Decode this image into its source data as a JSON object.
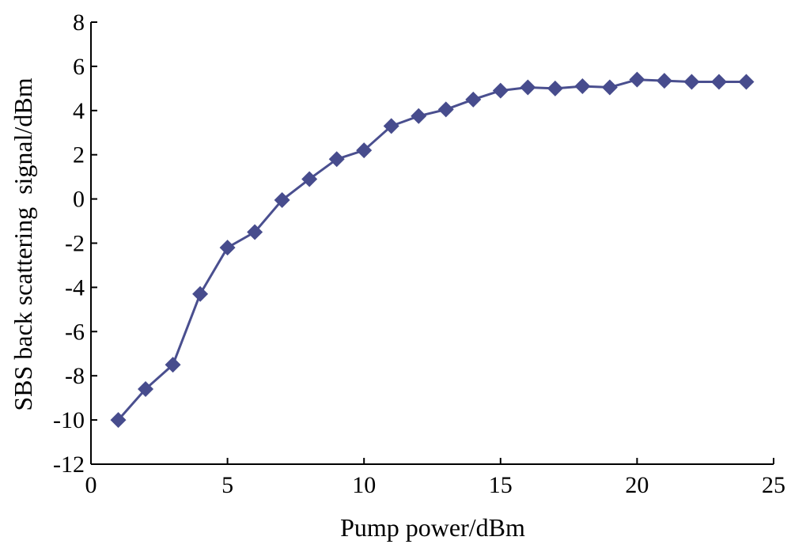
{
  "chart_data": {
    "type": "line",
    "title": "",
    "xlabel": "Pump power/dBm",
    "ylabel": "SBS back scattering  signal/dBm",
    "xlim": [
      0,
      25
    ],
    "ylim": [
      -12,
      8
    ],
    "xticks": [
      0,
      5,
      10,
      15,
      20,
      25
    ],
    "yticks": [
      -12,
      -10,
      -8,
      -6,
      -4,
      -2,
      0,
      2,
      4,
      6,
      8
    ],
    "grid": false,
    "legend": "none",
    "series": [
      {
        "color": "#474c8d",
        "marker": "diamond",
        "x": [
          1,
          2,
          3,
          4,
          5,
          6,
          7,
          8,
          9,
          10,
          11,
          12,
          13,
          14,
          15,
          16,
          17,
          18,
          19,
          20,
          21,
          22,
          23,
          24
        ],
        "y": [
          -10.0,
          -8.6,
          -7.5,
          -4.3,
          -2.2,
          -1.5,
          -0.05,
          0.9,
          1.8,
          2.2,
          3.3,
          3.75,
          4.05,
          4.5,
          4.9,
          5.05,
          5.0,
          5.1,
          5.05,
          5.4,
          5.35,
          5.3,
          5.3,
          5.3
        ]
      }
    ]
  }
}
